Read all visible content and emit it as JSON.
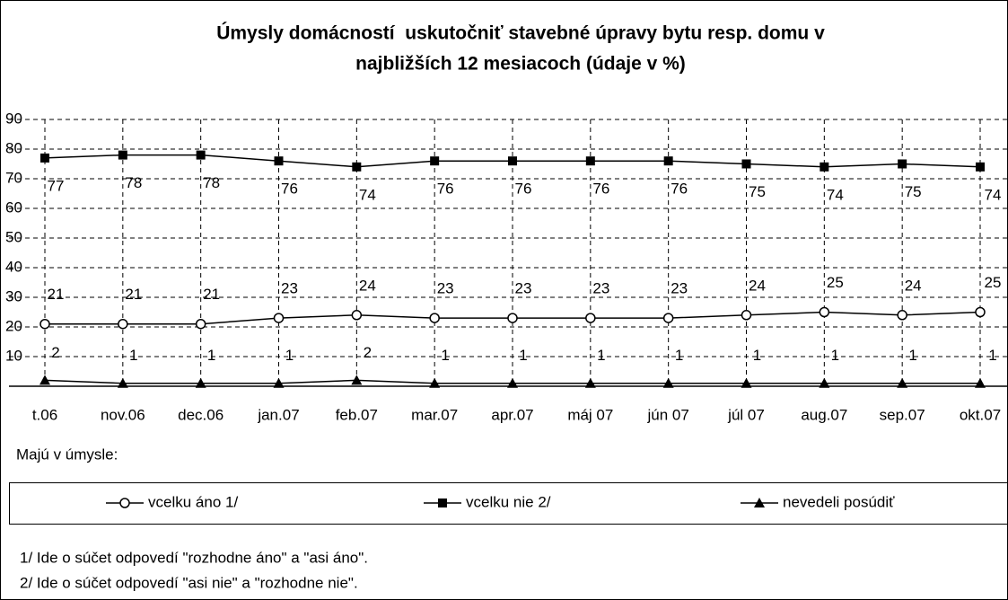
{
  "chart_data": {
    "type": "line",
    "title": [
      "Úmysly domácností  uskutočniť stavebné úpravy bytu resp. domu v",
      "najbližších 12 mesiacoch (údaje v %)"
    ],
    "categories": [
      "t.06",
      "nov.06",
      "dec.06",
      "jan.07",
      "feb.07",
      "mar.07",
      "apr.07",
      "máj 07",
      "jún 07",
      "júl 07",
      "aug.07",
      "sep.07",
      "okt.07"
    ],
    "series": [
      {
        "name": "vcelku áno 1/",
        "color": "#000000",
        "marker": "circle",
        "values": [
          21,
          21,
          21,
          23,
          24,
          23,
          23,
          23,
          23,
          24,
          25,
          24,
          25
        ]
      },
      {
        "name": "vcelku nie 2/",
        "color": "#000000",
        "marker": "square",
        "values": [
          77,
          78,
          78,
          76,
          74,
          76,
          76,
          76,
          76,
          75,
          74,
          75,
          74
        ]
      },
      {
        "name": "nevedeli posúdiť",
        "color": "#000000",
        "marker": "triangle",
        "values": [
          2,
          1,
          1,
          1,
          2,
          1,
          1,
          1,
          1,
          1,
          1,
          1,
          1
        ]
      }
    ],
    "ylim": [
      0,
      90
    ],
    "yticks": [
      10,
      20,
      30,
      40,
      50,
      60,
      70,
      80,
      90
    ],
    "grid": true,
    "legend_heading": "Majú v úmysle:",
    "footnotes": [
      "1/ Ide o súčet odpovedí \"rozhodne áno\" a \"asi áno\".",
      "2/ Ide o súčet odpovedí \"asi nie\" a \"rozhodne nie\"."
    ]
  }
}
